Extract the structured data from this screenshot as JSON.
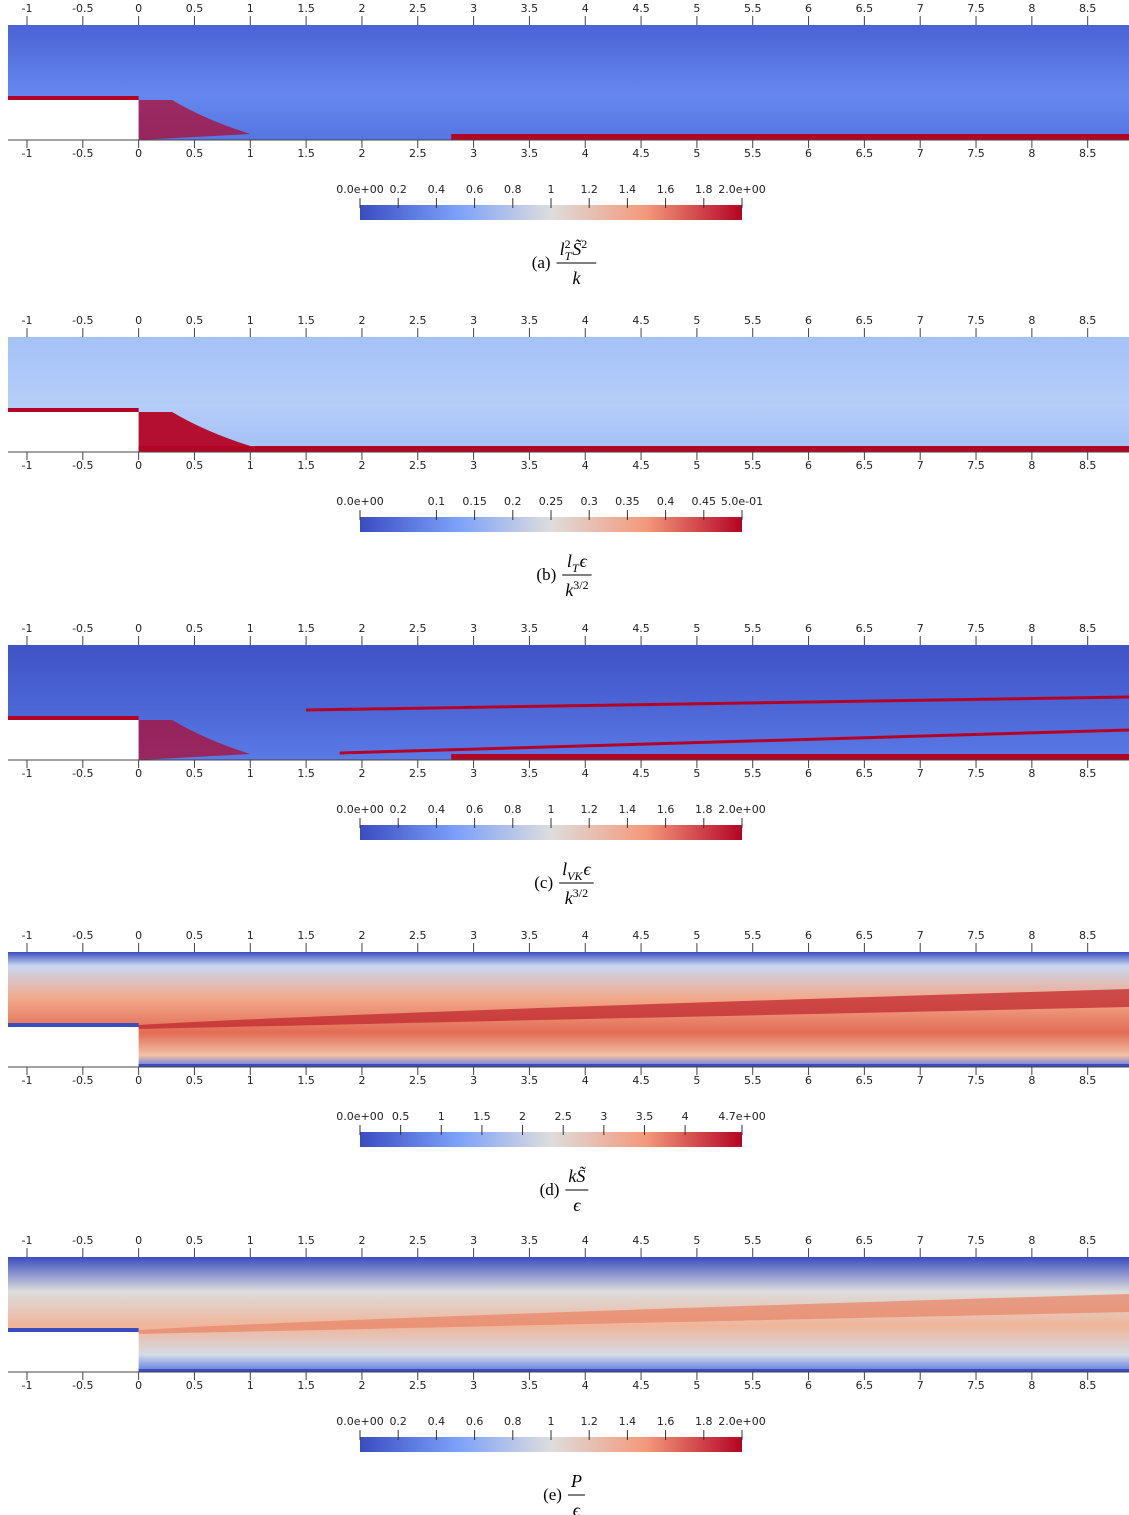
{
  "figure": {
    "xlim": [
      -1.17,
      8.87
    ],
    "xticks": [
      -1,
      -0.5,
      0,
      0.5,
      1,
      1.5,
      2,
      2.5,
      3,
      3.5,
      4,
      4.5,
      5,
      5.5,
      6,
      6.5,
      7,
      7.5,
      8,
      8.5
    ],
    "panels": [
      {
        "colorbar": {
          "range": [
            0,
            2
          ],
          "ticks": [
            {
              "value": 0,
              "label": "0.0e+00"
            },
            0.2,
            0.4,
            0.6,
            0.8,
            1,
            1.2,
            1.4,
            1.6,
            1.8,
            {
              "value": 2,
              "label": "2.0e+00"
            }
          ]
        },
        "caption": {
          "label": "(a)",
          "numerator": [
            {
              "base": "l",
              "sub": "T",
              "sup": "2"
            },
            {
              "base": "S̃",
              "sup": "2"
            }
          ],
          "denominator": [
            {
              "base": "k"
            }
          ]
        }
      },
      {
        "colorbar": {
          "range": [
            0,
            0.5
          ],
          "ticks": [
            {
              "value": 0,
              "label": "0.0e+00"
            },
            0.1,
            0.15,
            0.2,
            0.25,
            0.3,
            0.35,
            0.4,
            0.45,
            {
              "value": 0.5,
              "label": "5.0e-01"
            }
          ]
        },
        "caption": {
          "label": "(b)",
          "numerator": [
            {
              "base": "l",
              "sub": "T"
            },
            {
              "base": "ϵ"
            }
          ],
          "denominator": [
            {
              "base": "k",
              "sup": "3/2"
            }
          ]
        }
      },
      {
        "colorbar": {
          "range": [
            0,
            2
          ],
          "ticks": [
            {
              "value": 0,
              "label": "0.0e+00"
            },
            0.2,
            0.4,
            0.6,
            0.8,
            1,
            1.2,
            1.4,
            1.6,
            1.8,
            {
              "value": 2,
              "label": "2.0e+00"
            }
          ]
        },
        "caption": {
          "label": "(c)",
          "numerator": [
            {
              "base": "l",
              "sub": "VK"
            },
            {
              "base": "ϵ"
            }
          ],
          "denominator": [
            {
              "base": "k",
              "sup": "3/2"
            }
          ]
        }
      },
      {
        "colorbar": {
          "range": [
            0,
            4.7
          ],
          "ticks": [
            {
              "value": 0,
              "label": "0.0e+00"
            },
            0.5,
            1,
            1.5,
            2,
            2.5,
            3,
            3.5,
            4,
            {
              "value": 4.7,
              "label": "4.7e+00"
            }
          ]
        },
        "caption": {
          "label": "(d)",
          "numerator": [
            {
              "base": "k"
            },
            {
              "base": "S̃"
            }
          ],
          "denominator": [
            {
              "base": "ϵ"
            }
          ]
        }
      },
      {
        "colorbar": {
          "range": [
            0,
            2
          ],
          "ticks": [
            {
              "value": 0,
              "label": "0.0e+00"
            },
            0.2,
            0.4,
            0.6,
            0.8,
            1,
            1.2,
            1.4,
            1.6,
            1.8,
            {
              "value": 2,
              "label": "2.0e+00"
            }
          ]
        },
        "caption": {
          "label": "(e)",
          "numerator": [
            {
              "base": "P"
            }
          ],
          "denominator": [
            {
              "base": "ϵ"
            }
          ]
        }
      }
    ]
  }
}
